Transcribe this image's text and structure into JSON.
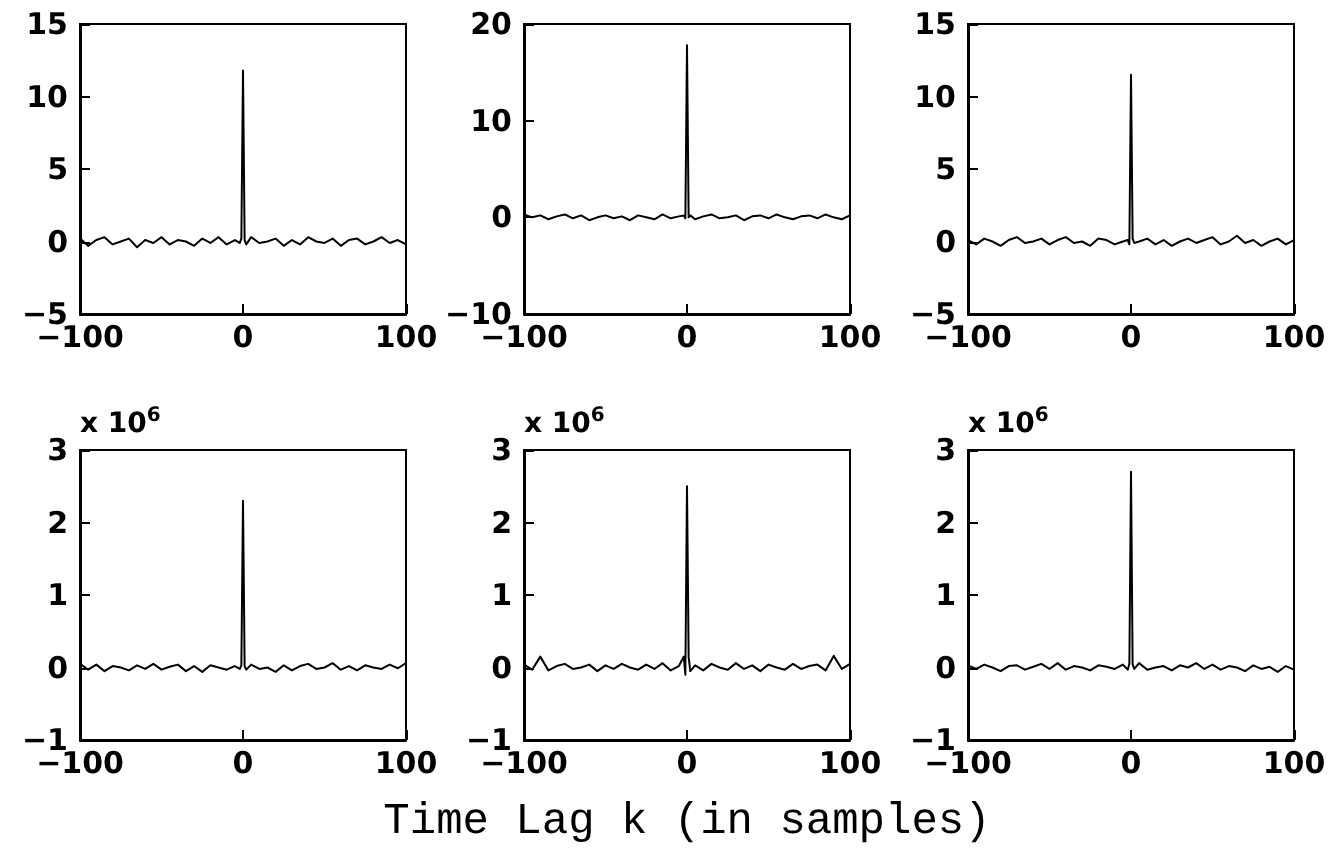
{
  "chart_data": [
    {
      "type": "line",
      "x": [
        -100,
        -95,
        -90,
        -85,
        -80,
        -75,
        -70,
        -65,
        -60,
        -55,
        -50,
        -45,
        -40,
        -35,
        -30,
        -25,
        -20,
        -15,
        -10,
        -5,
        -2,
        -1,
        0,
        1,
        2,
        5,
        10,
        15,
        20,
        25,
        30,
        35,
        40,
        45,
        50,
        55,
        60,
        65,
        70,
        75,
        80,
        85,
        90,
        95,
        100
      ],
      "values": [
        0.2,
        -0.3,
        0.1,
        0.3,
        -0.2,
        0.0,
        0.2,
        -0.4,
        0.1,
        -0.1,
        0.3,
        -0.2,
        0.1,
        0.0,
        -0.3,
        0.2,
        -0.1,
        0.3,
        -0.2,
        0.1,
        -0.1,
        0.2,
        11.8,
        0.1,
        -0.2,
        0.3,
        -0.1,
        0.0,
        0.2,
        -0.3,
        0.1,
        -0.2,
        0.3,
        0.0,
        -0.1,
        0.2,
        -0.3,
        0.1,
        0.2,
        -0.2,
        0.0,
        0.3,
        -0.1,
        0.1,
        -0.2
      ],
      "color": "#000000",
      "xlim": [
        -100,
        100
      ],
      "xticks": [
        -100,
        0,
        100
      ],
      "ylim": [
        -5,
        15
      ],
      "yticks": [
        -5,
        0,
        5,
        10,
        15
      ],
      "grid": false
    },
    {
      "type": "line",
      "x": [
        -100,
        -95,
        -90,
        -85,
        -80,
        -75,
        -70,
        -65,
        -60,
        -55,
        -50,
        -45,
        -40,
        -35,
        -30,
        -25,
        -20,
        -15,
        -10,
        -5,
        -2,
        -1,
        0,
        1,
        2,
        5,
        10,
        15,
        20,
        25,
        30,
        35,
        40,
        45,
        50,
        55,
        60,
        65,
        70,
        75,
        80,
        85,
        90,
        95,
        100
      ],
      "values": [
        0.3,
        0.0,
        0.2,
        -0.2,
        0.1,
        0.3,
        -0.1,
        0.2,
        -0.3,
        0.0,
        0.2,
        -0.1,
        0.1,
        -0.3,
        0.2,
        0.0,
        -0.2,
        0.3,
        -0.1,
        0.1,
        0.2,
        -0.1,
        17.8,
        0.0,
        0.2,
        -0.2,
        0.1,
        0.3,
        -0.1,
        0.0,
        0.2,
        -0.3,
        0.1,
        0.2,
        -0.1,
        0.3,
        0.0,
        -0.2,
        0.1,
        0.2,
        -0.1,
        0.3,
        0.0,
        -0.2,
        0.2
      ],
      "color": "#000000",
      "xlim": [
        -100,
        100
      ],
      "xticks": [
        -100,
        0,
        100
      ],
      "ylim": [
        -10,
        20
      ],
      "yticks": [
        -10,
        0,
        10,
        20
      ],
      "grid": false
    },
    {
      "type": "line",
      "x": [
        -100,
        -95,
        -90,
        -85,
        -80,
        -75,
        -70,
        -65,
        -60,
        -55,
        -50,
        -45,
        -40,
        -35,
        -30,
        -25,
        -20,
        -15,
        -10,
        -5,
        -2,
        -1,
        0,
        1,
        2,
        5,
        10,
        15,
        20,
        25,
        30,
        35,
        40,
        45,
        50,
        55,
        60,
        65,
        70,
        75,
        80,
        85,
        90,
        95,
        100
      ],
      "values": [
        0.1,
        -0.2,
        0.2,
        0.0,
        -0.3,
        0.1,
        0.3,
        -0.1,
        0.0,
        0.2,
        -0.2,
        0.1,
        0.3,
        -0.1,
        0.0,
        -0.3,
        0.2,
        0.1,
        -0.2,
        0.0,
        0.1,
        -0.2,
        11.5,
        0.2,
        -0.1,
        0.0,
        0.2,
        -0.2,
        0.1,
        -0.3,
        0.0,
        0.2,
        -0.1,
        0.1,
        0.3,
        -0.2,
        0.0,
        0.4,
        -0.1,
        0.1,
        -0.3,
        0.0,
        0.2,
        -0.2,
        0.1
      ],
      "color": "#000000",
      "xlim": [
        -100,
        100
      ],
      "xticks": [
        -100,
        0,
        100
      ],
      "ylim": [
        -5,
        15
      ],
      "yticks": [
        -5,
        0,
        5,
        10,
        15
      ],
      "grid": false
    },
    {
      "type": "line",
      "x": [
        -100,
        -95,
        -90,
        -85,
        -80,
        -75,
        -70,
        -65,
        -60,
        -55,
        -50,
        -45,
        -40,
        -35,
        -30,
        -25,
        -20,
        -15,
        -10,
        -5,
        -2,
        -1,
        0,
        1,
        2,
        5,
        10,
        15,
        20,
        25,
        30,
        35,
        40,
        45,
        50,
        55,
        60,
        65,
        70,
        75,
        80,
        85,
        90,
        95,
        100
      ],
      "values": [
        0.05,
        -0.03,
        0.04,
        -0.05,
        0.02,
        0.0,
        -0.04,
        0.03,
        -0.02,
        0.05,
        -0.03,
        0.01,
        0.04,
        -0.05,
        0.02,
        -0.06,
        0.03,
        0.0,
        -0.03,
        0.02,
        -0.02,
        0.03,
        2.3,
        0.02,
        -0.03,
        0.04,
        -0.02,
        0.0,
        -0.06,
        0.03,
        -0.04,
        0.02,
        0.05,
        -0.02,
        0.0,
        0.06,
        -0.03,
        0.02,
        -0.04,
        0.03,
        0.0,
        -0.02,
        0.04,
        -0.01,
        0.06
      ],
      "color": "#000000",
      "xlim": [
        -100,
        100
      ],
      "xticks": [
        -100,
        0,
        100
      ],
      "ylim": [
        -1,
        3
      ],
      "yticks": [
        -1,
        0,
        1,
        2,
        3
      ],
      "grid": false,
      "annotations": [
        "x 10$^{6}$"
      ]
    },
    {
      "type": "line",
      "x": [
        -100,
        -95,
        -90,
        -85,
        -80,
        -75,
        -70,
        -65,
        -60,
        -55,
        -50,
        -45,
        -40,
        -35,
        -30,
        -25,
        -20,
        -15,
        -10,
        -5,
        -2,
        -1,
        0,
        1,
        2,
        5,
        10,
        15,
        20,
        25,
        30,
        35,
        40,
        45,
        50,
        55,
        60,
        65,
        70,
        75,
        80,
        85,
        90,
        95,
        100
      ],
      "values": [
        0.04,
        -0.03,
        0.15,
        -0.04,
        0.02,
        0.05,
        -0.02,
        0.0,
        0.04,
        -0.05,
        0.03,
        -0.02,
        0.05,
        0.0,
        -0.03,
        0.04,
        -0.02,
        0.06,
        -0.04,
        0.02,
        0.15,
        -0.1,
        2.5,
        0.15,
        -0.05,
        0.03,
        -0.04,
        0.05,
        0.0,
        -0.03,
        0.06,
        -0.02,
        0.03,
        -0.05,
        0.04,
        0.0,
        -0.03,
        0.05,
        -0.02,
        0.02,
        0.04,
        -0.04,
        0.16,
        -0.02,
        0.05
      ],
      "color": "#000000",
      "xlim": [
        -100,
        100
      ],
      "xticks": [
        -100,
        0,
        100
      ],
      "ylim": [
        -1,
        3
      ],
      "yticks": [
        -1,
        0,
        1,
        2,
        3
      ],
      "grid": false,
      "annotations": [
        "x 10$^{6}$"
      ],
      "xlabel": "Time Lag k (in samples)"
    },
    {
      "type": "line",
      "x": [
        -100,
        -95,
        -90,
        -85,
        -80,
        -75,
        -70,
        -65,
        -60,
        -55,
        -50,
        -45,
        -40,
        -35,
        -30,
        -25,
        -20,
        -15,
        -10,
        -5,
        -2,
        -1,
        0,
        1,
        2,
        5,
        10,
        15,
        20,
        25,
        30,
        35,
        40,
        45,
        50,
        55,
        60,
        65,
        70,
        75,
        80,
        85,
        90,
        95,
        100
      ],
      "values": [
        0.03,
        -0.02,
        0.04,
        0.0,
        -0.05,
        0.02,
        0.03,
        -0.03,
        0.01,
        0.05,
        -0.02,
        0.06,
        -0.03,
        0.02,
        0.0,
        -0.04,
        0.03,
        0.01,
        -0.02,
        0.04,
        -0.03,
        0.05,
        2.7,
        0.04,
        -0.02,
        0.06,
        -0.03,
        0.0,
        0.02,
        -0.04,
        0.03,
        0.0,
        0.06,
        -0.02,
        0.04,
        -0.03,
        0.02,
        0.0,
        -0.05,
        0.03,
        -0.02,
        0.01,
        -0.06,
        0.02,
        -0.03
      ],
      "color": "#000000",
      "xlim": [
        -100,
        100
      ],
      "xticks": [
        -100,
        0,
        100
      ],
      "ylim": [
        -1,
        3
      ],
      "yticks": [
        -1,
        0,
        1,
        2,
        3
      ],
      "grid": false,
      "annotations": [
        "x 10$^{6}$"
      ]
    }
  ]
}
